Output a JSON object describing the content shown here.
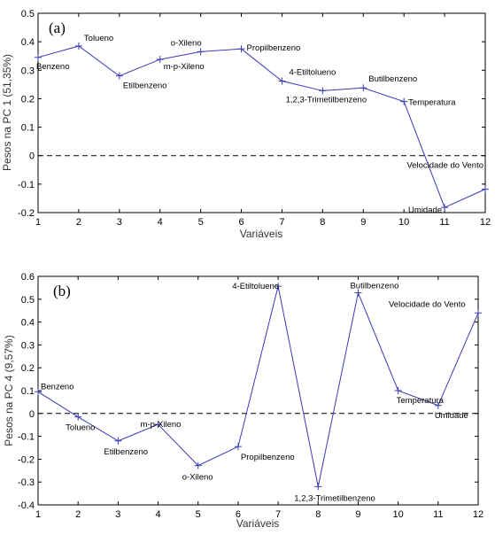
{
  "chart_data": [
    {
      "type": "line",
      "panel_label": "(a)",
      "xlabel": "Variáveis",
      "ylabel": "Pesos na PC 1 (51,35%)",
      "xlim": [
        1,
        12
      ],
      "ylim": [
        -0.2,
        0.5
      ],
      "xticks": [
        1,
        2,
        3,
        4,
        5,
        6,
        7,
        8,
        9,
        10,
        11,
        12
      ],
      "yticks": [
        -0.2,
        -0.1,
        0,
        0.1,
        0.2,
        0.3,
        0.4,
        0.5
      ],
      "ytick_labels": [
        "-0.2",
        "-0.1",
        "0",
        "0.1",
        "0.2",
        "0.3",
        "0.4",
        "0.5"
      ],
      "zero_line": "dashed",
      "grid": false,
      "series": [
        {
          "color": "#3a3ab4",
          "x": [
            1,
            2,
            3,
            4,
            5,
            6,
            7,
            8,
            9,
            10,
            11,
            12
          ],
          "values": [
            0.345,
            0.385,
            0.28,
            0.338,
            0.365,
            0.375,
            0.262,
            0.228,
            0.238,
            0.19,
            -0.182,
            -0.118
          ],
          "point_labels": [
            "Benzeno",
            "Tolueno",
            "Etilbenzeno",
            "m-p-Xileno",
            "o-Xileno",
            "Propilbenzeno",
            "4-Etiltolueno",
            "1,2,3-Trimetilbenzeno",
            "Butilbenzeno",
            "Temperatura",
            "Umidade",
            "Velocidade do Vento"
          ]
        }
      ]
    },
    {
      "type": "line",
      "panel_label": "(b)",
      "xlabel": "Variáveis",
      "ylabel": "Pesos na PC 4 (9,57%)",
      "xlim": [
        1,
        12
      ],
      "ylim": [
        -0.4,
        0.6
      ],
      "xticks": [
        1,
        2,
        3,
        4,
        5,
        6,
        7,
        8,
        9,
        10,
        11,
        12
      ],
      "yticks": [
        -0.4,
        -0.3,
        -0.2,
        -0.1,
        0,
        0.1,
        0.2,
        0.3,
        0.4,
        0.5,
        0.6
      ],
      "ytick_labels": [
        "-0.4",
        "-0.3",
        "-0.2",
        "-0.1",
        "0",
        "0.1",
        "0.2",
        "0.3",
        "0.4",
        "0.5",
        "0.6"
      ],
      "zero_line": "dashed",
      "grid": false,
      "series": [
        {
          "color": "#3a3ab4",
          "x": [
            1,
            2,
            3,
            4,
            5,
            6,
            7,
            8,
            9,
            10,
            11,
            12
          ],
          "values": [
            0.095,
            -0.015,
            -0.12,
            -0.048,
            -0.228,
            -0.145,
            0.557,
            -0.32,
            0.528,
            0.1,
            0.035,
            0.44
          ],
          "point_labels": [
            "Benzeno",
            "Tolueno",
            "Etilbenzeno",
            "m-p-Xileno",
            "o-Xileno",
            "Propilbenzeno",
            "4-Etiltolueno",
            "1,2,3-Trimetilbenzeno",
            "Butilbenzeno",
            "Temperatura",
            "Umidade",
            "Velocidade do Vento"
          ]
        }
      ]
    }
  ]
}
